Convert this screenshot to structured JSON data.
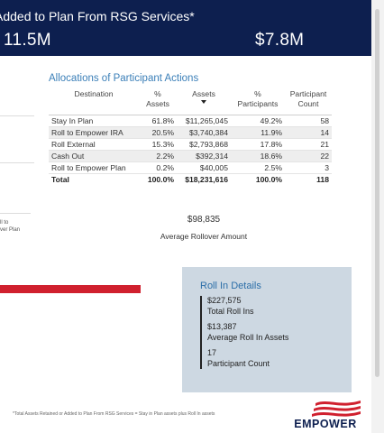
{
  "banner": {
    "title": "Added to Plan From RSG Services*",
    "left_value": "11.5M",
    "right_value": "$7.8M"
  },
  "left_partial_label": "ll to\nver Plan",
  "allocations": {
    "title": "Allocations of Participant Actions",
    "headers": {
      "destination": "Destination",
      "pct_assets": "%\nAssets",
      "assets": "Assets",
      "pct_participants": "%\nParticipants",
      "participant_count": "Participant\nCount"
    },
    "rows": [
      {
        "destination": "Stay In Plan",
        "pct_assets": "61.8%",
        "assets": "$11,265,045",
        "pct_participants": "49.2%",
        "count": "58"
      },
      {
        "destination": "Roll to Empower IRA",
        "pct_assets": "20.5%",
        "assets": "$3,740,384",
        "pct_participants": "11.9%",
        "count": "14"
      },
      {
        "destination": "Roll External",
        "pct_assets": "15.3%",
        "assets": "$2,793,868",
        "pct_participants": "17.8%",
        "count": "21"
      },
      {
        "destination": "Cash Out",
        "pct_assets": "2.2%",
        "assets": "$392,314",
        "pct_participants": "18.6%",
        "count": "22"
      },
      {
        "destination": "Roll to Empower Plan",
        "pct_assets": "0.2%",
        "assets": "$40,005",
        "pct_participants": "2.5%",
        "count": "3"
      }
    ],
    "total": {
      "destination": "Total",
      "pct_assets": "100.0%",
      "assets": "$18,231,616",
      "pct_participants": "100.0%",
      "count": "118"
    }
  },
  "average_rollover": {
    "value": "$98,835",
    "label": "Average Rollover Amount"
  },
  "roll_in": {
    "title": "Roll In Details",
    "total_value": "$227,575",
    "total_label": "Total Roll Ins",
    "avg_value": "$13,387",
    "avg_label": "Average Roll In Assets",
    "count_value": "17",
    "count_label": "Participant Count"
  },
  "footnote": "*Total Assets Retained or Added to Plan From RSG Services = Stay in Plan assets plus Roll In assets",
  "logo_text": "EMPOWER",
  "colors": {
    "banner": "#0d1f4f",
    "accent_blue": "#3b7fb8",
    "bar_red": "#d0202e",
    "rollin_bg": "#cdd8e2"
  }
}
